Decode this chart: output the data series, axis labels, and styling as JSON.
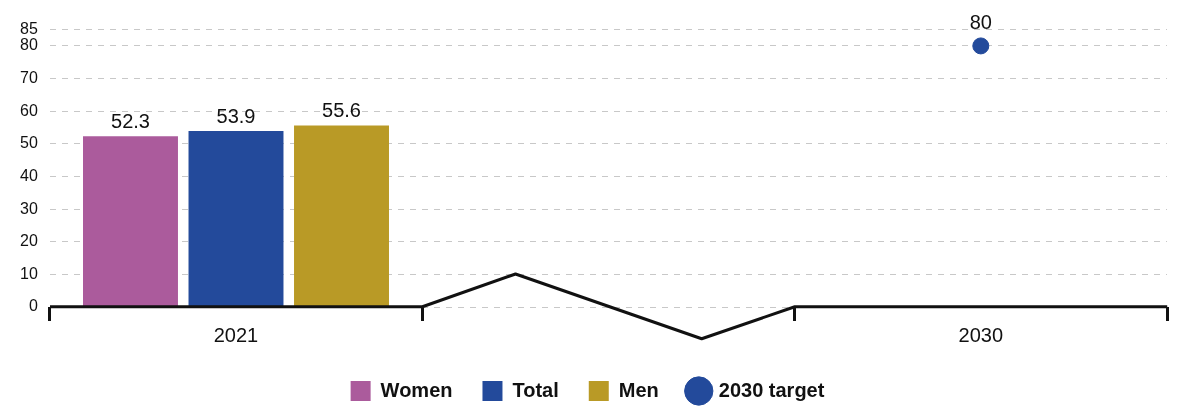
{
  "chart_data": {
    "type": "bar",
    "categories": [
      "2021",
      null,
      "2030"
    ],
    "series": [
      {
        "name": "Women",
        "color": "#ab5b9c",
        "values": [
          52.3,
          null,
          null
        ]
      },
      {
        "name": "Total",
        "color": "#234a9b",
        "values": [
          53.9,
          null,
          null
        ]
      },
      {
        "name": "Men",
        "color": "#b99a26",
        "values": [
          55.6,
          null,
          null
        ]
      },
      {
        "name": "2030 target",
        "color": "#234a9b",
        "type": "scatter",
        "values": [
          null,
          null,
          80
        ]
      }
    ],
    "ylim": [
      0,
      85
    ],
    "yticks": [
      0,
      10,
      20,
      30,
      40,
      50,
      60,
      70,
      80,
      85
    ],
    "grid": "y",
    "legend": "bottom",
    "data_labels": true
  }
}
